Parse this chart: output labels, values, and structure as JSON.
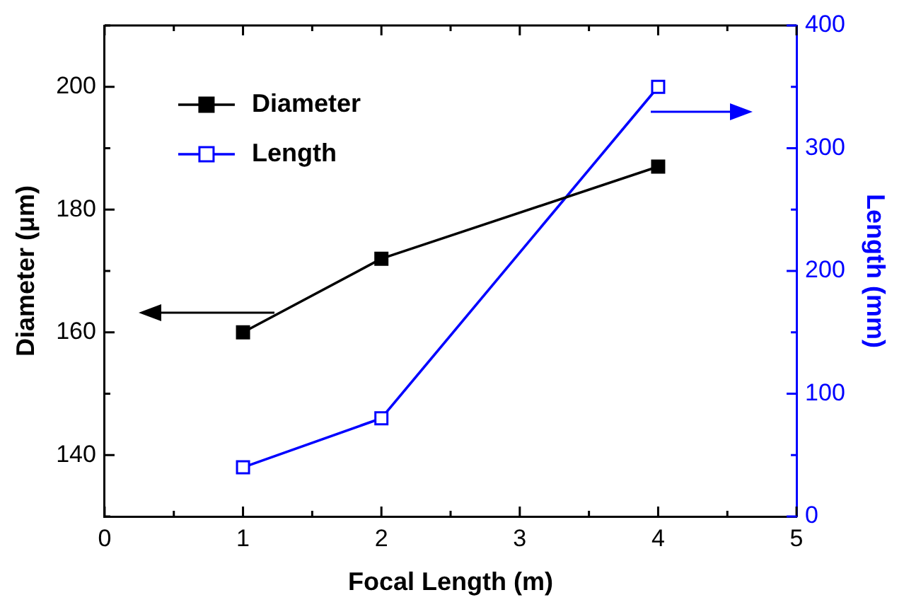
{
  "chart_data": {
    "type": "line",
    "xlabel": "Focal Length (m)",
    "ylabel": "Diameter (μm)",
    "y2label": "Length (mm)",
    "x": [
      1,
      2,
      4
    ],
    "series": [
      {
        "name": "Diameter",
        "color": "#000000",
        "values": [
          160,
          172,
          187
        ]
      },
      {
        "name": "Length",
        "color": "#0000ff",
        "values": [
          40,
          80,
          350
        ],
        "axis": "y2"
      }
    ],
    "xlim": [
      0,
      5
    ],
    "xticks": [
      0,
      {
        "value": 0.5,
        "label": null
      },
      1,
      {
        "value": 1.5,
        "label": null
      },
      2,
      {
        "value": 2.5,
        "label": null
      },
      3,
      {
        "value": 3.5,
        "label": null
      },
      4,
      {
        "value": 4.5,
        "label": null
      },
      5
    ],
    "ylim": [
      130,
      210
    ],
    "yticks": [
      {
        "value": 130,
        "label": null
      },
      140,
      {
        "value": 150,
        "label": null
      },
      160,
      {
        "value": 170,
        "label": null
      },
      180,
      {
        "value": 190,
        "label": null
      },
      200,
      {
        "value": 210,
        "label": null
      }
    ],
    "y2lim": [
      0,
      400
    ],
    "y2ticks": [
      0,
      {
        "value": 50,
        "label": null
      },
      100,
      {
        "value": 150,
        "label": null
      },
      200,
      {
        "value": 250,
        "label": null
      },
      300,
      {
        "value": 350,
        "label": null
      },
      400
    ],
    "legend": "top left",
    "marker": "square",
    "line_style": "solid"
  }
}
